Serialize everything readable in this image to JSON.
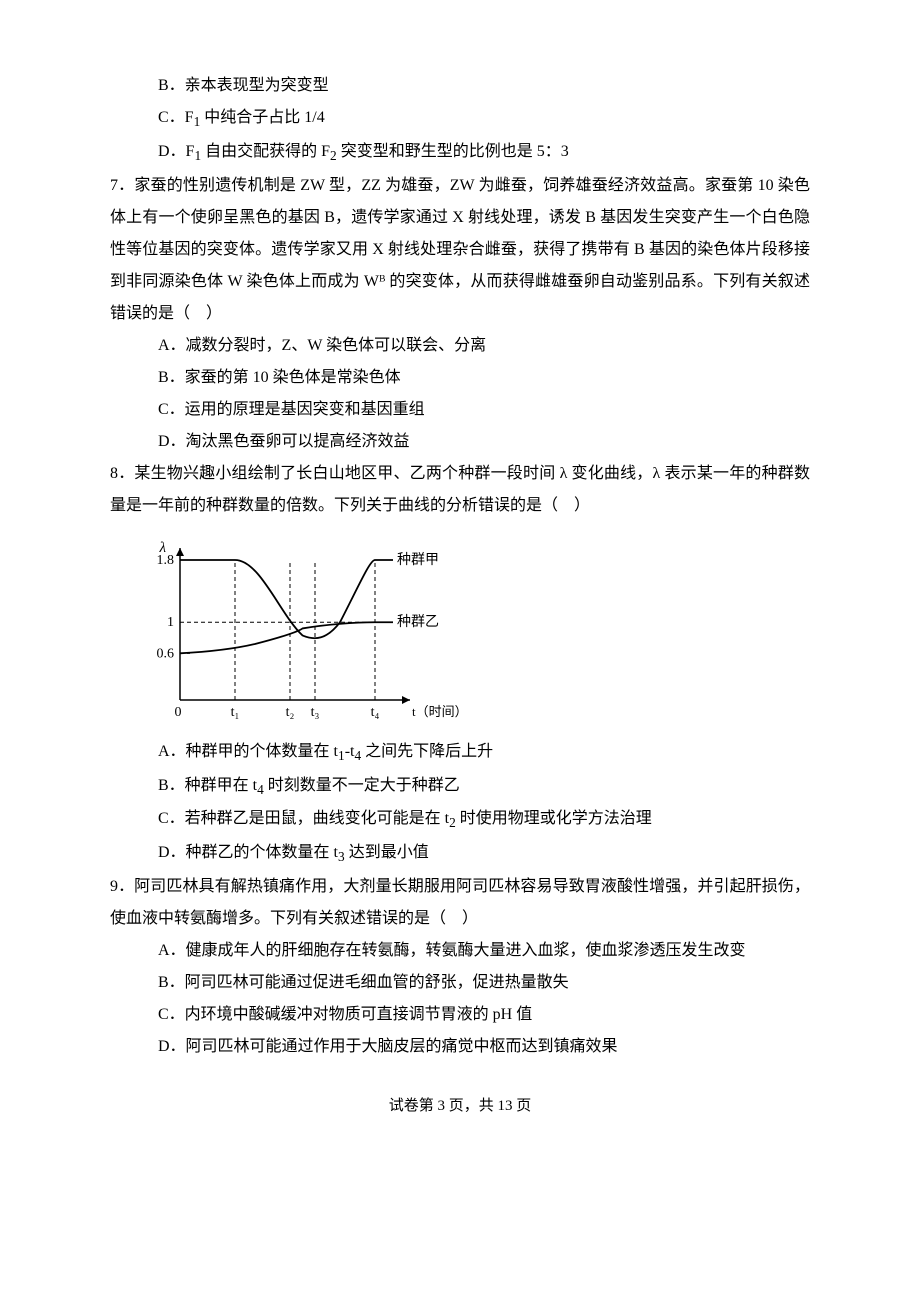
{
  "opt_6B": "B．亲本表现型为突变型",
  "opt_6C_pre": "C．F",
  "opt_6C_sub": "1",
  "opt_6C_post": " 中纯合子占比 1/4",
  "opt_6D_pre": "D．F",
  "opt_6D_sub1": "1",
  "opt_6D_mid": " 自由交配获得的 F",
  "opt_6D_sub2": "2",
  "opt_6D_post": " 突变型和野生型的比例也是 5：3",
  "q7_stem": "7．家蚕的性别遗传机制是 ZW 型，ZZ 为雄蚕，ZW 为雌蚕，饲养雄蚕经济效益高。家蚕第 10 染色体上有一个使卵呈黑色的基因 B，遗传学家通过 X 射线处理，诱发 B 基因发生突变产生一个白色隐性等位基因的突变体。遗传学家又用 X 射线处理杂合雌蚕，获得了携带有 B 基因的染色体片段移接到非同源染色体 W 染色体上而成为 Wᴮ 的突变体，从而获得雌雄蚕卵自动鉴别品系。下列有关叙述错误的是（　）",
  "opt_7A": "A．减数分裂时，Z、W 染色体可以联会、分离",
  "opt_7B": "B．家蚕的第 10 染色体是常染色体",
  "opt_7C": "C．运用的原理是基因突变和基因重组",
  "opt_7D": "D．淘汰黑色蚕卵可以提高经济效益",
  "q8_stem": "8．某生物兴趣小组绘制了长白山地区甲、乙两个种群一段时间 λ 变化曲线，λ 表示某一年的种群数量是一年前的种群数量的倍数。下列关于曲线的分析错误的是（　）",
  "chart": {
    "y_label": "λ",
    "y_ticks": [
      "1.8",
      "1",
      "0.6"
    ],
    "x_ticks": [
      "0",
      "t₁",
      "t₂",
      "t₃",
      "t₄"
    ],
    "x_axis_label": "t（时间）",
    "legend_jia": "种群甲",
    "legend_yi": "种群乙",
    "axis_color": "#000000",
    "line_color": "#000000",
    "dash_color": "#000000",
    "bg": "#ffffff",
    "font_size": 14
  },
  "opt_8A_pre": "A．种群甲的个体数量在 t",
  "opt_8A_s1": "1",
  "opt_8A_mid": "-t",
  "opt_8A_s2": "4",
  "opt_8A_post": " 之间先下降后上升",
  "opt_8B_pre": "B．种群甲在 t",
  "opt_8B_s": "4",
  "opt_8B_post": " 时刻数量不一定大于种群乙",
  "opt_8C_pre": "C．若种群乙是田鼠，曲线变化可能是在 t",
  "opt_8C_s": "2",
  "opt_8C_post": " 时使用物理或化学方法治理",
  "opt_8D_pre": "D．种群乙的个体数量在 t",
  "opt_8D_s": "3",
  "opt_8D_post": " 达到最小值",
  "q9_stem": "9．阿司匹林具有解热镇痛作用，大剂量长期服用阿司匹林容易导致胃液酸性增强，并引起肝损伤，使血液中转氨酶增多。下列有关叙述错误的是（　）",
  "opt_9A": "A．健康成年人的肝细胞存在转氨酶，转氨酶大量进入血浆，使血浆渗透压发生改变",
  "opt_9B": "B．阿司匹林可能通过促进毛细血管的舒张，促进热量散失",
  "opt_9C": "C．内环境中酸碱缓冲对物质可直接调节胃液的 pH 值",
  "opt_9D": "D．阿司匹林可能通过作用于大脑皮层的痛觉中枢而达到镇痛效果",
  "footer": "试卷第 3 页，共 13 页"
}
